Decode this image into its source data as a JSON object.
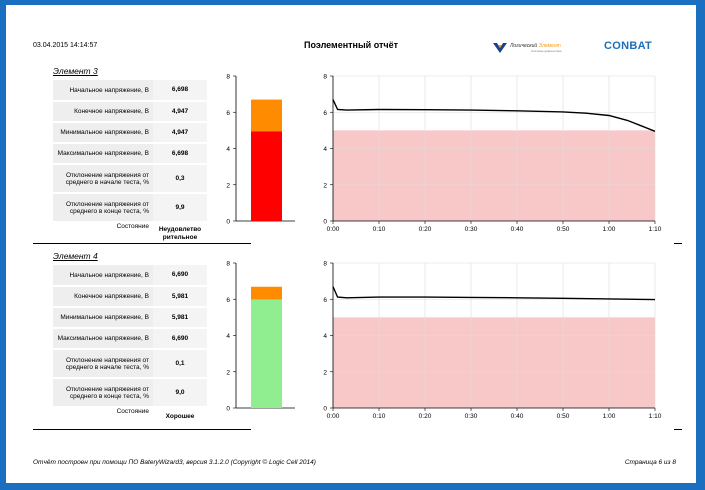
{
  "header": {
    "date": "03.04.2015 14:14:57",
    "title": "Поэлементный отчёт",
    "logo_logic_part1": "Логический ",
    "logo_logic_part2": "Элемент",
    "logo_logic_tagline": "Системы диагностики",
    "logo_conbat": "CONBAT"
  },
  "colors": {
    "bad": "#ff0000",
    "good": "#90ee90",
    "deviation": "#ff8c00",
    "danger_zone": "#f8c8c8"
  },
  "elements": [
    {
      "title": "Элемент 3",
      "params": [
        {
          "label": "Начальное напряжение, В",
          "value": "6,698"
        },
        {
          "label": "Конечное напряжение, В",
          "value": "4,947"
        },
        {
          "label": "Минимальное напряжение, В",
          "value": "4,947"
        },
        {
          "label": "Максимальное напряжение, В",
          "value": "6,698"
        },
        {
          "label": "Отклонение напряжения от среднего в начале теста, %",
          "value": "0,3"
        },
        {
          "label": "Отклонение напряжения от среднего в конце теста, %",
          "value": "9,9"
        }
      ],
      "state_label": "Состояние",
      "state_value": "Неудовлетво рительное",
      "bar": {
        "final": 4.947,
        "initial": 6.698,
        "status": "bad",
        "yticks": [
          "0",
          "2",
          "4",
          "6",
          "8"
        ],
        "ymax": 8
      },
      "curve": {
        "x_labels": [
          "0:00",
          "0:10",
          "0:20",
          "0:30",
          "0:40",
          "0:50",
          "1:00",
          "1:10"
        ],
        "y_labels": [
          "0",
          "2",
          "4",
          "6",
          "8"
        ],
        "threshold": 5.0,
        "points": [
          [
            0,
            6.7
          ],
          [
            1,
            6.15
          ],
          [
            3,
            6.12
          ],
          [
            10,
            6.15
          ],
          [
            20,
            6.14
          ],
          [
            30,
            6.12
          ],
          [
            40,
            6.08
          ],
          [
            50,
            6.02
          ],
          [
            55,
            5.95
          ],
          [
            60,
            5.82
          ],
          [
            64,
            5.55
          ],
          [
            67,
            5.25
          ],
          [
            70,
            4.95
          ]
        ]
      }
    },
    {
      "title": "Элемент 4",
      "params": [
        {
          "label": "Начальное напряжение, В",
          "value": "6,690"
        },
        {
          "label": "Конечное напряжение, В",
          "value": "5,981"
        },
        {
          "label": "Минимальное напряжение, В",
          "value": "5,981"
        },
        {
          "label": "Максимальное напряжение, В",
          "value": "6,690"
        },
        {
          "label": "Отклонение напряжения от среднего в начале теста, %",
          "value": "0,1"
        },
        {
          "label": "Отклонение напряжения от среднего в конце теста, %",
          "value": "9,0"
        }
      ],
      "state_label": "Состояние",
      "state_value": "Хорошее",
      "bar": {
        "final": 5.981,
        "initial": 6.69,
        "status": "good",
        "yticks": [
          "0",
          "2",
          "4",
          "6",
          "8"
        ],
        "ymax": 8
      },
      "curve": {
        "x_labels": [
          "0:00",
          "0:10",
          "0:20",
          "0:30",
          "0:40",
          "0:50",
          "1:00",
          "1:10"
        ],
        "y_labels": [
          "0",
          "2",
          "4",
          "6",
          "8"
        ],
        "threshold": 5.0,
        "points": [
          [
            0,
            6.7
          ],
          [
            1,
            6.12
          ],
          [
            3,
            6.08
          ],
          [
            10,
            6.12
          ],
          [
            20,
            6.12
          ],
          [
            30,
            6.1
          ],
          [
            40,
            6.08
          ],
          [
            50,
            6.05
          ],
          [
            60,
            6.02
          ],
          [
            70,
            5.98
          ]
        ]
      }
    }
  ],
  "footer": {
    "left": "Отчёт построен при помощи ПО BateryWizard3, версия 3.1.2.0 (Copyright © Logic Cell 2014)",
    "right": "Страница 6 из 8"
  }
}
